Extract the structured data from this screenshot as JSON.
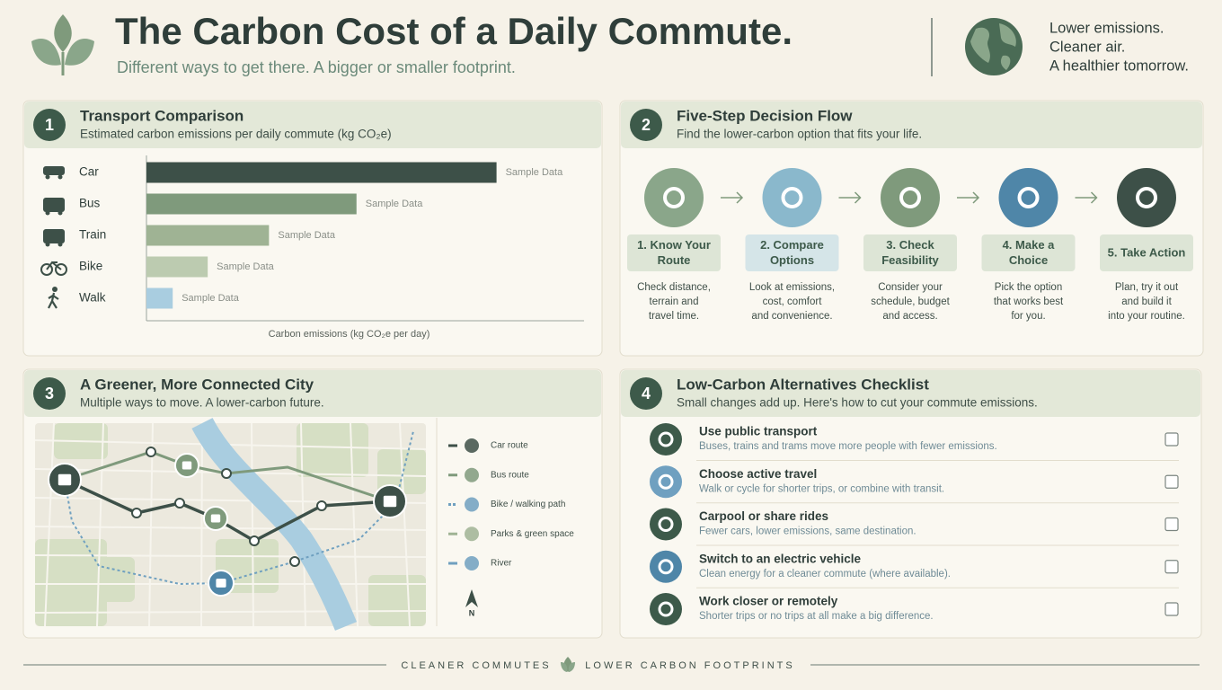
{
  "header": {
    "title": "The Carbon Cost of a Daily Commute.",
    "subtitle": "Different ways to get there. A bigger or smaller footprint.",
    "tagline": [
      "Lower emissions.",
      "Cleaner air.",
      "A healthier tomorrow."
    ]
  },
  "chart_data": {
    "type": "bar",
    "orientation": "horizontal",
    "number": "1",
    "title": "Transport Comparison",
    "subtitle": "Estimated carbon emissions per daily commute (kg CO₂e)",
    "categories": [
      "Car",
      "Bus",
      "Train",
      "Bike",
      "Walk"
    ],
    "values": [
      4.0,
      2.4,
      1.4,
      0.7,
      0.3
    ],
    "value_labels": [
      "Sample Data",
      "Sample Data",
      "Sample Data",
      "Sample Data",
      "Sample Data"
    ],
    "colors": [
      "#3d5048",
      "#7f9a7c",
      "#9fb394",
      "#bccbb0",
      "#a9cde0"
    ],
    "xlabel": "Carbon emissions (kg CO₂e per day)",
    "xlim": [
      0,
      5
    ]
  },
  "decision_flow": {
    "number": "2",
    "title": "Five-Step Decision Flow",
    "subtitle": "Find the lower-carbon option that fits your life.",
    "steps": [
      {
        "label": [
          "1. Know Your",
          "Route"
        ],
        "description": [
          "Check distance,",
          "terrain and",
          "travel time."
        ]
      },
      {
        "label": [
          "2. Compare",
          "Options"
        ],
        "description": [
          "Look at emissions,",
          "cost, comfort",
          "and convenience."
        ]
      },
      {
        "label": [
          "3. Check",
          "Feasibility"
        ],
        "description": [
          "Consider your",
          "schedule, budget",
          "and access."
        ]
      },
      {
        "label": [
          "4. Make a",
          "Choice"
        ],
        "description": [
          "Pick the option",
          "that works best",
          "for you."
        ]
      },
      {
        "label": [
          "5. Take Action"
        ],
        "description": [
          "Plan, try it out",
          "and build it",
          "into your routine."
        ]
      }
    ]
  },
  "map": {
    "number": "3",
    "title": "A Greener, More Connected City",
    "subtitle": "Multiple ways to move. A lower-carbon future.",
    "legend": [
      "Car route",
      "Bus route",
      "Bike / walking path",
      "Parks & green space",
      "River"
    ],
    "north": "N"
  },
  "checklist": {
    "number": "4",
    "title": "Low-Carbon Alternatives Checklist",
    "subtitle": "Small changes add up. Here's how to cut your commute emissions.",
    "items": [
      {
        "title": "Use public transport",
        "description": "Buses, trains and trams move more people with fewer emissions."
      },
      {
        "title": "Choose active travel",
        "description": "Walk or cycle for shorter trips, or combine with transit."
      },
      {
        "title": "Carpool or share rides",
        "description": "Fewer cars, lower emissions, same destination."
      },
      {
        "title": "Switch to an electric vehicle",
        "description": "Clean energy for a cleaner commute (where available)."
      },
      {
        "title": "Work closer or remotely",
        "description": "Shorter trips or no trips at all make a big difference."
      }
    ]
  },
  "footer": {
    "left": "CLEANER COMMUTES",
    "right": "LOWER CARBON FOOTPRINTS"
  }
}
